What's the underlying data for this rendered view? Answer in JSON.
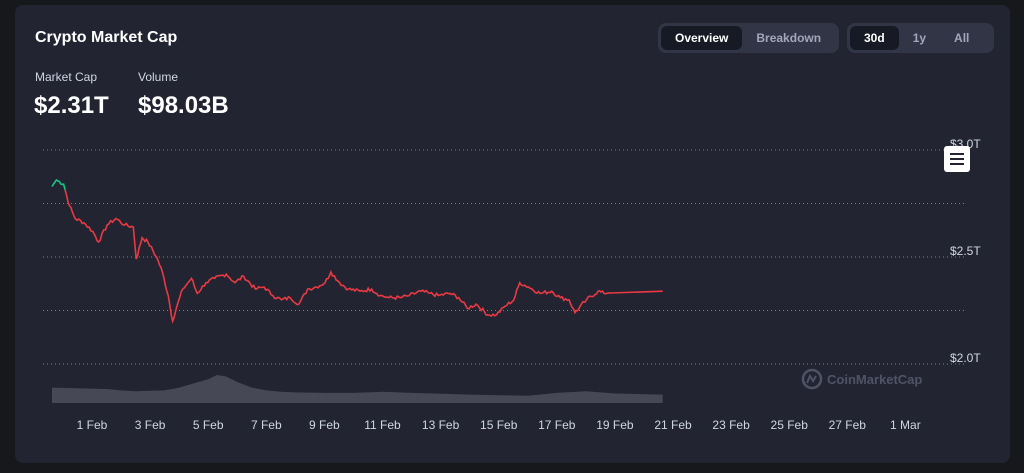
{
  "header": {
    "title": "Crypto Market Cap"
  },
  "stats": {
    "market_cap_label": "Market Cap",
    "market_cap_value": "$2.31T",
    "volume_label": "Volume",
    "volume_value": "$98.03B"
  },
  "view_toggle": {
    "options": [
      "Overview",
      "Breakdown"
    ],
    "active": "Overview"
  },
  "range_toggle": {
    "options": [
      "30d",
      "1y",
      "All"
    ],
    "active": "30d"
  },
  "watermark": "CoinMarketCap",
  "colors": {
    "background": "#222531",
    "line_down": "#ea3943",
    "line_up": "#16c784",
    "volume": "#4a4d5a",
    "grid": "#a1a7bb",
    "text": "#cfd6e4"
  },
  "icons": {
    "menu": "hamburger-menu-icon",
    "logo": "coinmarketcap-logo-icon"
  },
  "chart_data": {
    "type": "area",
    "title": "",
    "xlabel": "",
    "ylabel": "",
    "ylim": [
      2.0,
      3.0
    ],
    "y_ticks": [
      "$3.0T",
      "$2.5T",
      "$2.0T"
    ],
    "y_tick_values": [
      3.0,
      2.5,
      2.0
    ],
    "grid": true,
    "x_ticks": [
      "1 Feb",
      "3 Feb",
      "5 Feb",
      "7 Feb",
      "9 Feb",
      "11 Feb",
      "13 Feb",
      "15 Feb",
      "17 Feb",
      "19 Feb",
      "21 Feb",
      "23 Feb",
      "25 Feb",
      "27 Feb",
      "1 Mar"
    ],
    "series": [
      {
        "values": [
          [
            0.0,
            2.83
          ],
          [
            0.15,
            2.86
          ],
          [
            0.4,
            2.84
          ],
          [
            0.6,
            2.74
          ],
          [
            0.8,
            2.68
          ],
          [
            1.1,
            2.66
          ],
          [
            1.4,
            2.62
          ],
          [
            1.6,
            2.57
          ],
          [
            1.9,
            2.65
          ],
          [
            2.2,
            2.68
          ],
          [
            2.5,
            2.65
          ],
          [
            2.8,
            2.64
          ],
          [
            2.9,
            2.49
          ],
          [
            3.1,
            2.59
          ],
          [
            3.3,
            2.57
          ],
          [
            3.6,
            2.5
          ],
          [
            3.8,
            2.43
          ],
          [
            4.0,
            2.32
          ],
          [
            4.15,
            2.2
          ],
          [
            4.3,
            2.27
          ],
          [
            4.5,
            2.35
          ],
          [
            4.8,
            2.4
          ],
          [
            5.0,
            2.33
          ],
          [
            5.3,
            2.38
          ],
          [
            5.6,
            2.4
          ],
          [
            6.0,
            2.42
          ],
          [
            6.3,
            2.38
          ],
          [
            6.6,
            2.41
          ],
          [
            7.0,
            2.35
          ],
          [
            7.3,
            2.36
          ],
          [
            7.6,
            2.32
          ],
          [
            7.9,
            2.3
          ],
          [
            8.2,
            2.31
          ],
          [
            8.5,
            2.28
          ],
          [
            8.8,
            2.35
          ],
          [
            9.1,
            2.36
          ],
          [
            9.4,
            2.38
          ],
          [
            9.6,
            2.43
          ],
          [
            9.9,
            2.38
          ],
          [
            10.2,
            2.35
          ],
          [
            10.6,
            2.34
          ],
          [
            11.0,
            2.35
          ],
          [
            11.3,
            2.32
          ],
          [
            11.6,
            2.31
          ],
          [
            12.0,
            2.31
          ],
          [
            12.3,
            2.32
          ],
          [
            12.7,
            2.34
          ],
          [
            13.0,
            2.33
          ],
          [
            13.3,
            2.32
          ],
          [
            13.7,
            2.33
          ],
          [
            14.0,
            2.31
          ],
          [
            14.3,
            2.26
          ],
          [
            14.6,
            2.28
          ],
          [
            15.0,
            2.23
          ],
          [
            15.3,
            2.23
          ],
          [
            15.6,
            2.27
          ],
          [
            15.9,
            2.3
          ],
          [
            16.1,
            2.38
          ],
          [
            16.4,
            2.36
          ],
          [
            16.8,
            2.33
          ],
          [
            17.2,
            2.34
          ],
          [
            17.5,
            2.31
          ],
          [
            17.8,
            2.3
          ],
          [
            18.0,
            2.24
          ],
          [
            18.4,
            2.3
          ],
          [
            18.8,
            2.34
          ],
          [
            19.0,
            2.33
          ],
          [
            19.3,
            2.34
          ]
        ]
      }
    ],
    "volume": [
      [
        0.0,
        0.55
      ],
      [
        0.5,
        0.5
      ],
      [
        1.0,
        0.45
      ],
      [
        1.5,
        0.42
      ],
      [
        2.0,
        0.44
      ],
      [
        2.5,
        0.45
      ],
      [
        3.0,
        0.55
      ],
      [
        3.5,
        0.7
      ],
      [
        4.0,
        0.85
      ],
      [
        4.3,
        1.0
      ],
      [
        4.6,
        0.95
      ],
      [
        5.0,
        0.75
      ],
      [
        5.5,
        0.55
      ],
      [
        6.0,
        0.45
      ],
      [
        6.5,
        0.4
      ],
      [
        7.0,
        0.38
      ],
      [
        8.0,
        0.36
      ],
      [
        9.0,
        0.36
      ],
      [
        10.0,
        0.4
      ],
      [
        11.0,
        0.36
      ],
      [
        12.0,
        0.33
      ],
      [
        13.0,
        0.3
      ],
      [
        14.0,
        0.28
      ],
      [
        15.0,
        0.26
      ],
      [
        16.0,
        0.36
      ],
      [
        17.0,
        0.42
      ],
      [
        18.0,
        0.34
      ],
      [
        19.3,
        0.3
      ]
    ]
  }
}
